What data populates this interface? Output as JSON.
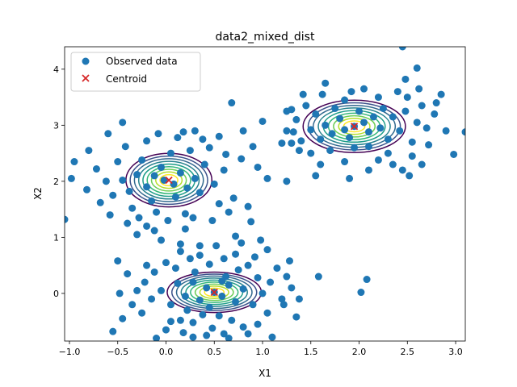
{
  "chart_data": {
    "type": "scatter",
    "title": "data2_mixed_dist",
    "xlabel": "X1",
    "ylabel": "X2",
    "xlim": [
      -1.05,
      3.1
    ],
    "ylim": [
      -0.85,
      4.4
    ],
    "x_ticks": [
      -1.0,
      -0.5,
      0.0,
      0.5,
      1.0,
      1.5,
      2.0,
      2.5,
      3.0
    ],
    "x_tick_labels": [
      "−1.0",
      "−0.5",
      "0.0",
      "0.5",
      "1.0",
      "1.5",
      "2.0",
      "2.5",
      "3.0"
    ],
    "y_ticks": [
      0,
      1,
      2,
      3,
      4
    ],
    "y_tick_labels": [
      "0",
      "1",
      "2",
      "3",
      "4"
    ],
    "legend": {
      "placement": "top-left",
      "entries": [
        {
          "label": "Observed data",
          "marker": "circle",
          "color": "#1f77b4"
        },
        {
          "label": "Centroid",
          "marker": "x",
          "color": "#d62728"
        }
      ]
    },
    "centroids": [
      {
        "x": 0.03,
        "y": 2.02
      },
      {
        "x": 0.5,
        "y": 0.02
      },
      {
        "x": 1.95,
        "y": 2.98
      }
    ],
    "series": [
      {
        "name": "Observed data",
        "color": "#1f77b4",
        "points": [
          [
            -0.02,
            2.02
          ],
          [
            0.08,
            1.95
          ],
          [
            -0.12,
            2.1
          ],
          [
            0.15,
            2.15
          ],
          [
            -0.2,
            1.9
          ],
          [
            0.22,
            1.88
          ],
          [
            -0.05,
            2.25
          ],
          [
            0.3,
            2.05
          ],
          [
            -0.3,
            2.12
          ],
          [
            0.1,
            1.72
          ],
          [
            -0.15,
            1.65
          ],
          [
            0.35,
            1.8
          ],
          [
            -0.38,
            1.82
          ],
          [
            0.4,
            2.3
          ],
          [
            -0.25,
            2.38
          ],
          [
            0.05,
            2.5
          ],
          [
            0.25,
            2.55
          ],
          [
            -0.45,
            2.02
          ],
          [
            0.5,
            1.95
          ],
          [
            -0.1,
            1.45
          ],
          [
            0.2,
            1.42
          ],
          [
            -0.35,
            1.52
          ],
          [
            0.55,
            1.6
          ],
          [
            0.45,
            2.6
          ],
          [
            -0.5,
            2.35
          ],
          [
            0.6,
            2.2
          ],
          [
            -0.55,
            1.75
          ],
          [
            0.12,
            2.78
          ],
          [
            -0.2,
            2.72
          ],
          [
            0.62,
            2.48
          ],
          [
            0.28,
            1.35
          ],
          [
            -0.28,
            1.35
          ],
          [
            0.7,
            1.7
          ],
          [
            -0.62,
            2.0
          ],
          [
            0.78,
            2.4
          ],
          [
            0.02,
            1.3
          ],
          [
            0.38,
            2.75
          ],
          [
            -0.42,
            2.62
          ],
          [
            0.65,
            1.45
          ],
          [
            -0.68,
            1.62
          ],
          [
            0.3,
            2.9
          ],
          [
            -0.58,
            1.4
          ],
          [
            0.85,
            1.55
          ],
          [
            0.8,
            2.9
          ],
          [
            -0.72,
            2.22
          ],
          [
            0.18,
            2.88
          ],
          [
            -0.08,
            2.85
          ],
          [
            0.48,
            1.3
          ],
          [
            -0.4,
            1.25
          ],
          [
            0.95,
            2.25
          ],
          [
            -0.8,
            2.55
          ],
          [
            -0.82,
            1.85
          ],
          [
            0.9,
            2.62
          ],
          [
            -0.95,
            2.35
          ],
          [
            -0.98,
            2.05
          ],
          [
            -0.45,
            3.05
          ],
          [
            0.68,
            3.4
          ],
          [
            -1.05,
            1.32
          ],
          [
            -0.12,
            1.12
          ],
          [
            0.2,
            1.15
          ],
          [
            -0.05,
            0.95
          ],
          [
            0.15,
            0.88
          ],
          [
            0.72,
            1.02
          ],
          [
            -0.2,
            1.2
          ],
          [
            0.88,
            1.28
          ],
          [
            -0.6,
            2.85
          ],
          [
            -0.3,
            1.05
          ],
          [
            0.55,
            2.8
          ],
          [
            0.5,
            0.02
          ],
          [
            0.42,
            0.1
          ],
          [
            0.58,
            -0.05
          ],
          [
            0.35,
            -0.12
          ],
          [
            0.65,
            0.15
          ],
          [
            0.28,
            0.2
          ],
          [
            0.72,
            -0.15
          ],
          [
            0.45,
            -0.25
          ],
          [
            0.62,
            0.3
          ],
          [
            0.2,
            -0.05
          ],
          [
            0.8,
            0.08
          ],
          [
            0.3,
            0.38
          ],
          [
            0.75,
            0.42
          ],
          [
            0.12,
            0.18
          ],
          [
            0.9,
            -0.2
          ],
          [
            0.38,
            -0.38
          ],
          [
            0.55,
            -0.4
          ],
          [
            0.05,
            -0.2
          ],
          [
            0.95,
            0.28
          ],
          [
            0.22,
            -0.3
          ],
          [
            0.85,
            0.5
          ],
          [
            0.45,
            0.52
          ],
          [
            1.0,
            0.0
          ],
          [
            0.1,
            0.45
          ],
          [
            0.68,
            -0.48
          ],
          [
            -0.05,
            0.05
          ],
          [
            1.08,
            0.2
          ],
          [
            0.28,
            -0.52
          ],
          [
            0.15,
            -0.48
          ],
          [
            1.05,
            -0.35
          ],
          [
            0.6,
            0.62
          ],
          [
            0.35,
            0.68
          ],
          [
            -0.12,
            0.38
          ],
          [
            1.15,
            0.45
          ],
          [
            -0.15,
            -0.1
          ],
          [
            0.8,
            -0.6
          ],
          [
            0.48,
            -0.62
          ],
          [
            0.0,
            0.55
          ],
          [
            1.2,
            -0.1
          ],
          [
            0.25,
            0.62
          ],
          [
            -0.22,
            0.2
          ],
          [
            0.72,
            0.7
          ],
          [
            1.25,
            0.3
          ],
          [
            0.95,
            -0.55
          ],
          [
            0.05,
            -0.5
          ],
          [
            -0.25,
            -0.35
          ],
          [
            0.42,
            -0.75
          ],
          [
            0.6,
            -0.72
          ],
          [
            1.22,
            -0.2
          ],
          [
            -0.3,
            0.05
          ],
          [
            0.92,
            0.65
          ],
          [
            1.3,
            0.1
          ],
          [
            0.18,
            -0.7
          ],
          [
            0.85,
            -0.72
          ],
          [
            -0.35,
            -0.2
          ],
          [
            1.28,
            0.58
          ],
          [
            -0.4,
            0.35
          ],
          [
            0.52,
            0.85
          ],
          [
            0.0,
            -0.65
          ],
          [
            1.05,
            0.78
          ],
          [
            -0.45,
            -0.45
          ],
          [
            1.38,
            -0.1
          ],
          [
            -0.5,
            0.58
          ],
          [
            0.28,
            -0.78
          ],
          [
            0.78,
            0.9
          ],
          [
            -0.48,
            0.0
          ],
          [
            1.1,
            -0.78
          ],
          [
            0.65,
            -0.8
          ],
          [
            -0.55,
            -0.68
          ],
          [
            1.35,
            -0.42
          ],
          [
            -0.1,
            -0.8
          ],
          [
            0.35,
            0.85
          ],
          [
            0.98,
            0.95
          ],
          [
            0.15,
            0.75
          ],
          [
            -0.2,
            0.5
          ],
          [
            0.58,
            0.22
          ],
          [
            1.95,
            2.98
          ],
          [
            2.05,
            3.05
          ],
          [
            1.85,
            2.92
          ],
          [
            2.1,
            2.88
          ],
          [
            1.8,
            3.12
          ],
          [
            2.15,
            3.15
          ],
          [
            1.9,
            2.78
          ],
          [
            2.0,
            3.25
          ],
          [
            1.72,
            2.85
          ],
          [
            2.22,
            2.95
          ],
          [
            1.75,
            3.3
          ],
          [
            2.25,
            3.3
          ],
          [
            1.65,
            3.0
          ],
          [
            2.3,
            2.75
          ],
          [
            1.95,
            2.6
          ],
          [
            2.1,
            2.62
          ],
          [
            1.6,
            2.75
          ],
          [
            2.35,
            3.15
          ],
          [
            1.85,
            3.45
          ],
          [
            2.2,
            3.5
          ],
          [
            1.55,
            3.2
          ],
          [
            2.42,
            2.9
          ],
          [
            1.7,
            2.55
          ],
          [
            2.3,
            2.5
          ],
          [
            1.5,
            2.92
          ],
          [
            2.48,
            3.25
          ],
          [
            1.92,
            3.6
          ],
          [
            2.4,
            3.6
          ],
          [
            1.45,
            3.35
          ],
          [
            2.55,
            2.7
          ],
          [
            1.62,
            3.55
          ],
          [
            2.2,
            2.38
          ],
          [
            1.4,
            2.72
          ],
          [
            2.6,
            3.05
          ],
          [
            1.85,
            2.35
          ],
          [
            2.5,
            3.5
          ],
          [
            1.35,
            3.1
          ],
          [
            2.65,
            3.35
          ],
          [
            1.5,
            2.5
          ],
          [
            2.35,
            2.3
          ],
          [
            2.05,
            3.65
          ],
          [
            1.32,
            2.88
          ],
          [
            2.7,
            2.95
          ],
          [
            1.42,
            3.55
          ],
          [
            2.55,
            2.45
          ],
          [
            1.6,
            2.3
          ],
          [
            2.1,
            2.2
          ],
          [
            2.62,
            3.65
          ],
          [
            1.3,
            3.28
          ],
          [
            2.78,
            3.2
          ],
          [
            2.45,
            2.2
          ],
          [
            1.25,
            3.25
          ],
          [
            2.72,
            2.65
          ],
          [
            1.38,
            2.55
          ],
          [
            2.8,
            3.4
          ],
          [
            1.55,
            2.1
          ],
          [
            1.9,
            2.05
          ],
          [
            2.48,
            3.82
          ],
          [
            1.3,
            2.68
          ],
          [
            2.9,
            2.9
          ],
          [
            1.2,
            2.68
          ],
          [
            2.52,
            2.1
          ],
          [
            1.65,
            3.75
          ],
          [
            2.6,
            4.02
          ],
          [
            2.85,
            3.55
          ],
          [
            2.45,
            4.4
          ],
          [
            3.1,
            2.88
          ],
          [
            2.98,
            2.48
          ],
          [
            2.65,
            2.3
          ],
          [
            1.05,
            2.05
          ],
          [
            1.25,
            2.0
          ],
          [
            1.0,
            3.07
          ],
          [
            1.25,
            2.9
          ],
          [
            1.58,
            0.3
          ],
          [
            2.08,
            0.25
          ],
          [
            2.02,
            0.02
          ]
        ]
      }
    ]
  }
}
